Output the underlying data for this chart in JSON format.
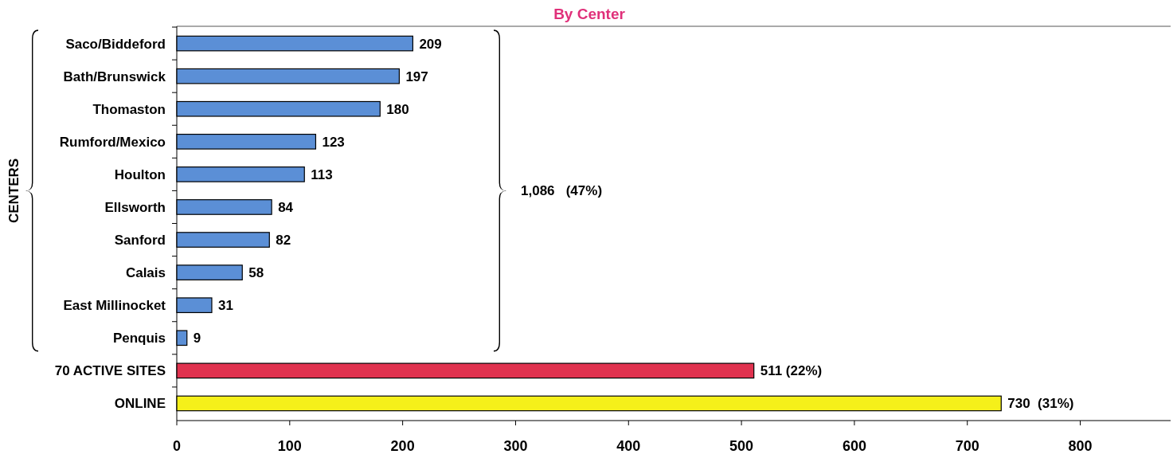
{
  "chart_data": {
    "type": "bar",
    "orientation": "horizontal",
    "title": "By Center",
    "ylabel": "CENTERS",
    "categories": [
      "Saco/Biddeford",
      "Bath/Brunswick",
      "Thomaston",
      "Rumford/Mexico",
      "Houlton",
      "Ellsworth",
      "Sanford",
      "Calais",
      "East Millinocket",
      "Penquis",
      "70 ACTIVE SITES",
      "ONLINE"
    ],
    "values": [
      209,
      197,
      180,
      123,
      113,
      84,
      82,
      58,
      31,
      9,
      511,
      730
    ],
    "colors": [
      "#5b8fd6",
      "#5b8fd6",
      "#5b8fd6",
      "#5b8fd6",
      "#5b8fd6",
      "#5b8fd6",
      "#5b8fd6",
      "#5b8fd6",
      "#5b8fd6",
      "#5b8fd6",
      "#e0324f",
      "#f5f01a"
    ],
    "value_labels": [
      "209",
      "197",
      "180",
      "123",
      "113",
      "84",
      "82",
      "58",
      "31",
      "9",
      "511 (22%)",
      "730  (31%)"
    ],
    "annotations": [
      "1,086   (47%)"
    ],
    "xlim": [
      0,
      880
    ],
    "xticks": [
      0,
      100,
      200,
      300,
      400,
      500,
      600,
      700,
      800
    ]
  }
}
